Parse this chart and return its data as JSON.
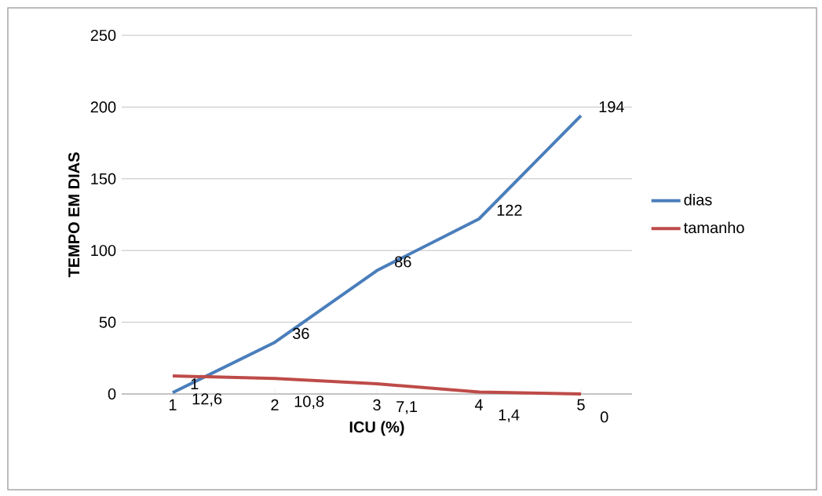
{
  "chart_data": {
    "type": "line",
    "xlabel": "ICU (%)",
    "ylabel": "TEMPO EM DIAS",
    "categories": [
      "1",
      "2",
      "3",
      "4",
      "5"
    ],
    "series": [
      {
        "name": "dias",
        "color": "#4a7ebb",
        "values": [
          1,
          36,
          86,
          122,
          194
        ],
        "value_labels": [
          "1",
          "36",
          "86",
          "122",
          "194"
        ]
      },
      {
        "name": "tamanho",
        "color": "#be4b48",
        "values": [
          12.6,
          10.8,
          7.1,
          1.4,
          0
        ],
        "value_labels": [
          "12,6",
          "10,8",
          "7,1",
          "1,4",
          "0"
        ]
      }
    ],
    "ylim": [
      0,
      250
    ],
    "yticks": [
      0,
      50,
      100,
      150,
      200,
      250
    ],
    "grid": "y",
    "legend": "right",
    "marker": "none",
    "line_style": "solid"
  }
}
